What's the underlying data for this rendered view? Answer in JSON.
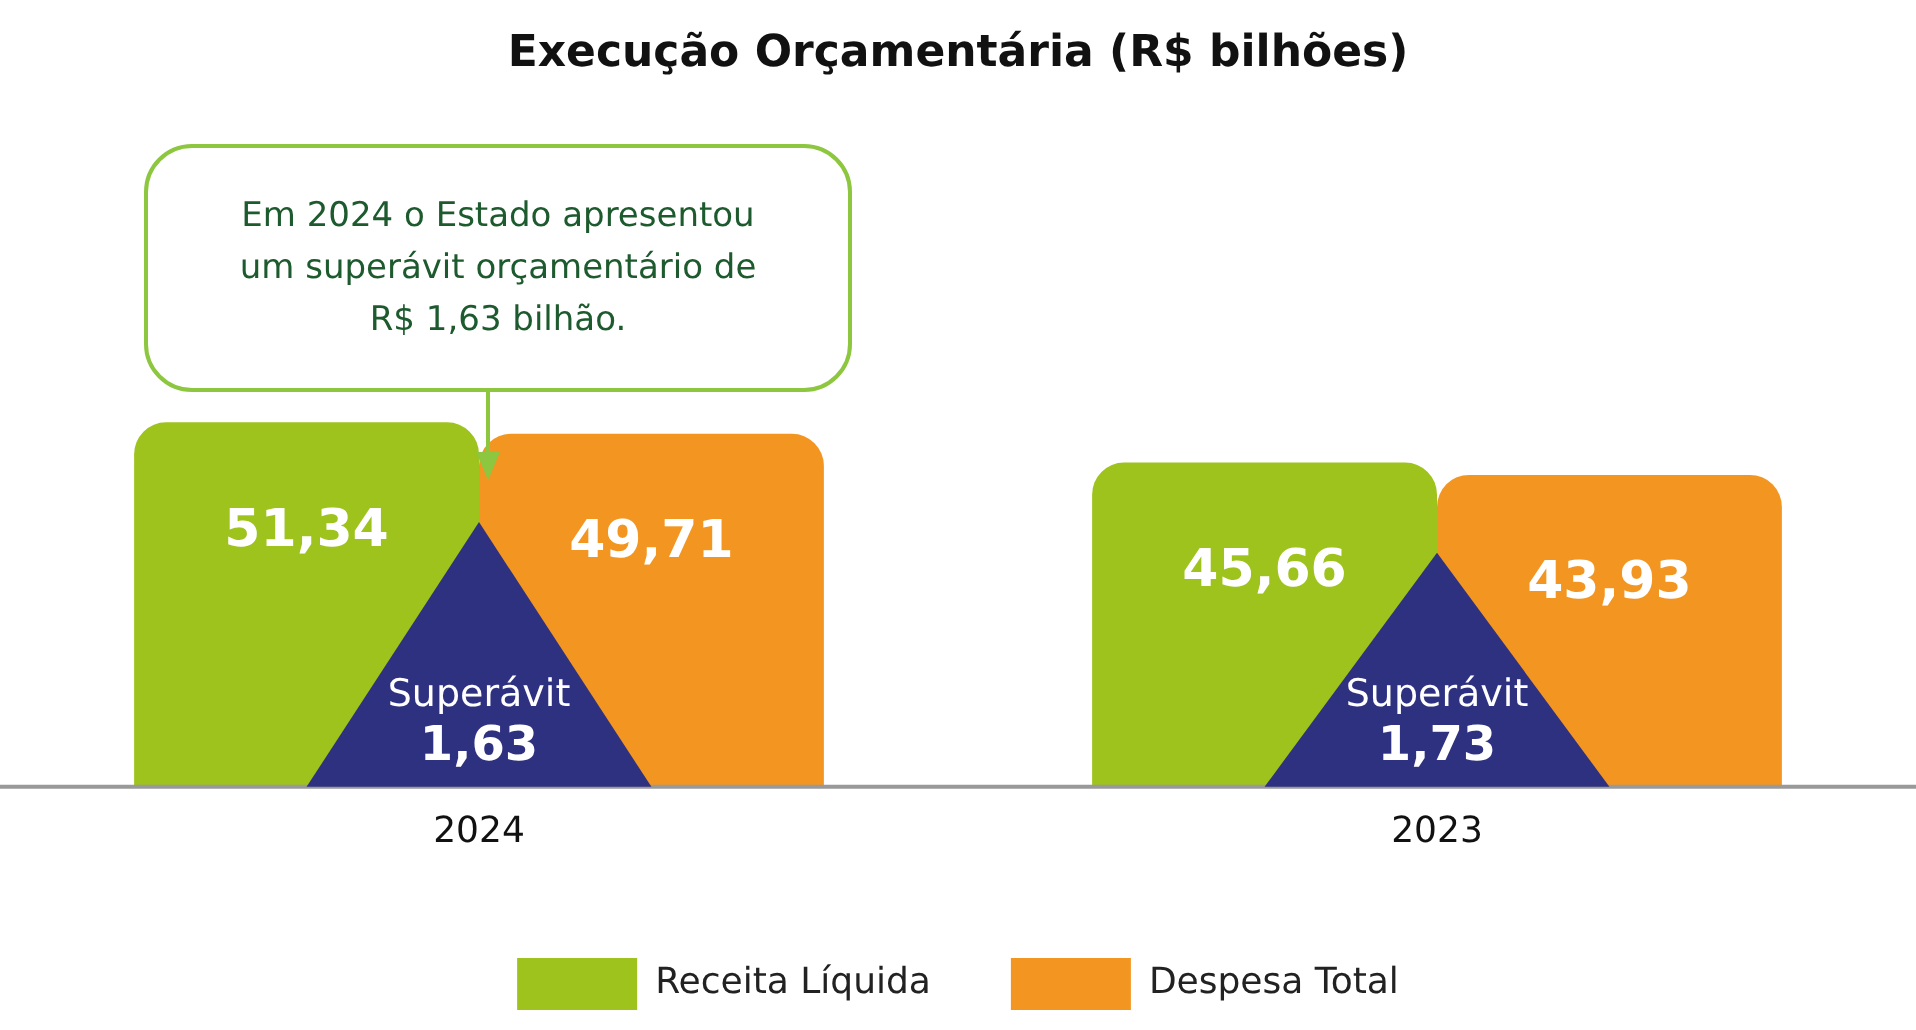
{
  "chart_data": {
    "type": "bar",
    "title": "Execução Orçamentária (R$ bilhões)",
    "categories": [
      "2024",
      "2023"
    ],
    "series": [
      {
        "name": "Receita Líquida",
        "color": "#9dc31c",
        "values": [
          51.34,
          45.66
        ],
        "value_labels": [
          "51,34",
          "45,66"
        ]
      },
      {
        "name": "Despesa Total",
        "color": "#f39621",
        "values": [
          49.71,
          43.93
        ],
        "value_labels": [
          "49,71",
          "43,93"
        ]
      }
    ],
    "tick_labels": "x",
    "grid": false,
    "legend": "bottom",
    "annotations": [
      "Em 2024 o Estado apresentou um superávit orçamentário de R$ 1,63 bilhão.",
      {
        "text": "Superávit",
        "x": "2024",
        "y": 13
      },
      {
        "text": "1,63",
        "x": "2024",
        "y": 6
      },
      {
        "text": "Superávit",
        "x": "2023",
        "y": 13
      },
      {
        "text": "1,73",
        "x": "2023",
        "y": 6
      }
    ]
  }
}
